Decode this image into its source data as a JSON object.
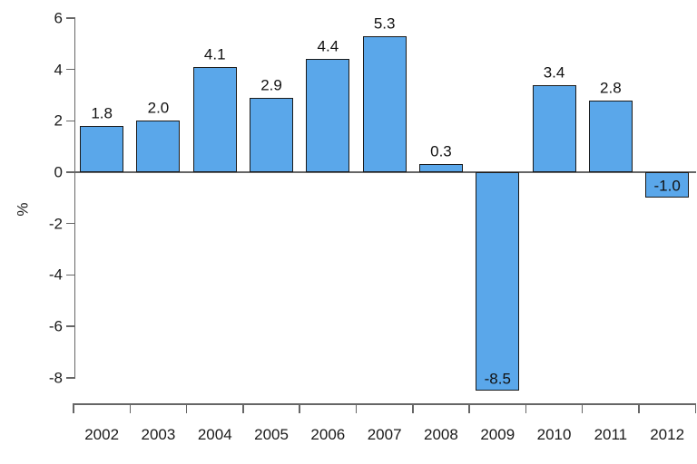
{
  "chart_data": {
    "type": "bar",
    "title": "",
    "xlabel": "",
    "ylabel": "%",
    "categories": [
      "2002",
      "2003",
      "2004",
      "2005",
      "2006",
      "2007",
      "2008",
      "2009",
      "2010",
      "2011",
      "2012"
    ],
    "values": [
      1.8,
      2.0,
      4.1,
      2.9,
      4.4,
      5.3,
      0.3,
      -8.5,
      3.4,
      2.8,
      -1.0
    ],
    "value_labels": [
      "1.8",
      "2.0",
      "4.1",
      "2.9",
      "4.4",
      "5.3",
      "0.3",
      "-8.5",
      "3.4",
      "2.8",
      "-1.0"
    ],
    "y_ticks": [
      6,
      4,
      2,
      0,
      -2,
      -4,
      -6,
      -8
    ],
    "ylim": [
      -8.6,
      6
    ],
    "grid": false,
    "legend": false,
    "bar_color": "#5aa7ea",
    "bar_border_color": "#1a1a1a",
    "axis_color": "#666666",
    "text_color": "#1a1a1a"
  }
}
